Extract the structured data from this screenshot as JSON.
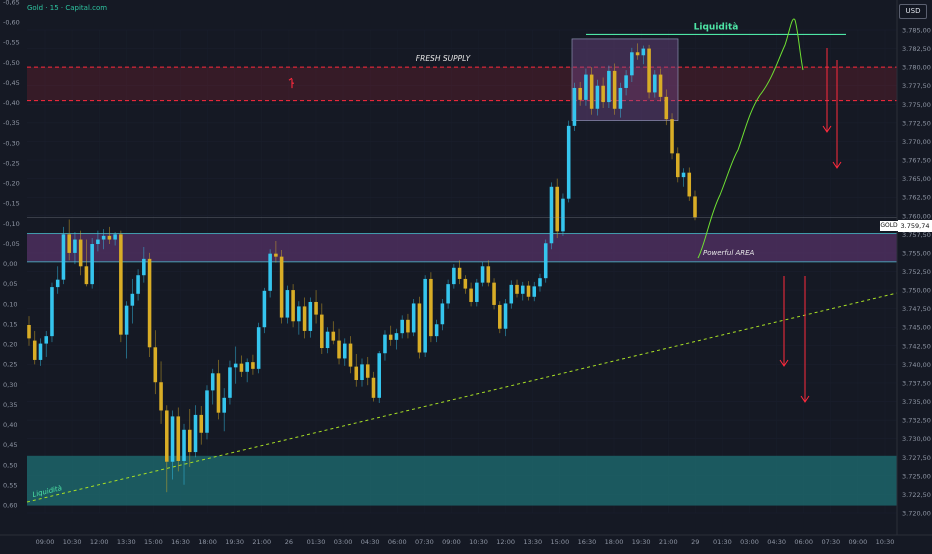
{
  "header": {
    "title": "Gold · 15 · Capital.com",
    "currency": "USD"
  },
  "price_tag": {
    "symbol": "GOLD",
    "value": "3.759,74"
  },
  "colors": {
    "background": "#151924",
    "bull": "#35c5ee",
    "bear": "#d9ad26",
    "supply": "#ff2a3d",
    "zone": "#6c3a7d",
    "liquidity_line": "#4ee6a6",
    "projection": "#6fe033",
    "trendline": "#a8e024",
    "demand_zone": "#1d6f73",
    "axis_text": "#8e95a3"
  },
  "chart_data": {
    "type": "candlestick",
    "title": "Gold · 15 · Capital.com",
    "currency": "USD",
    "right_axis_ticks": [
      "3.785,00",
      "3.782,50",
      "3.780,00",
      "3.777,50",
      "3.775,00",
      "3.772,50",
      "3.770,00",
      "3.767,50",
      "3.765,00",
      "3.762,50",
      "3.760,00",
      "3.757,50",
      "3.755,00",
      "3.752,50",
      "3.750,00",
      "3.747,50",
      "3.745,00",
      "3.742,50",
      "3.740,00",
      "3.737,50",
      "3.735,00",
      "3.732,50",
      "3.730,00",
      "3.727,50",
      "3.725,00",
      "3.722,50",
      "3.720,00"
    ],
    "left_axis_ticks": [
      "-0,65",
      "-0,60",
      "-0,55",
      "-0,50",
      "-0,45",
      "-0,40",
      "-0,35",
      "-0,30",
      "-0,25",
      "-0,20",
      "-0,15",
      "-0,10",
      "-0,05",
      "0,00",
      "0,05",
      "0,10",
      "0,15",
      "0,20",
      "0,25",
      "0,30",
      "0,35",
      "0,40",
      "0,45",
      "0,50",
      "0,55",
      "0,60"
    ],
    "x_ticks": [
      "09:00",
      "10:30",
      "12:00",
      "13:30",
      "15:00",
      "16:30",
      "18:00",
      "19:30",
      "21:00",
      "26",
      "01:30",
      "03:00",
      "04:30",
      "06:00",
      "07:30",
      "09:00",
      "10:30",
      "12:00",
      "13:30",
      "15:00",
      "16:30",
      "18:00",
      "19:30",
      "21:00",
      "29",
      "01:30",
      "03:00",
      "04:30",
      "06:00",
      "07:30",
      "09:00",
      "10:30"
    ],
    "y_range": [
      3719.5,
      3787.5
    ],
    "last_price": 3759.74,
    "annotations": {
      "fresh_supply_label": "FRESH SUPPLY",
      "liquidity_top_label": "Liquidità",
      "powerful_area_label": "Powerful AREA",
      "liquidity_bottom_label": "Liquidità",
      "supply_zone": [
        3775.5,
        3780.0
      ],
      "liquidity_level": 3784.4,
      "powerful_area": [
        3753.8,
        3757.6
      ],
      "liquidity_zone": [
        3721.0,
        3727.7
      ]
    },
    "candles": [
      {
        "o": 3745.3,
        "h": 3746.5,
        "l": 3742.5,
        "c": 3743.5
      },
      {
        "o": 3743.2,
        "h": 3744.5,
        "l": 3740.0,
        "c": 3740.6
      },
      {
        "o": 3740.6,
        "h": 3743.5,
        "l": 3739.8,
        "c": 3742.8
      },
      {
        "o": 3742.8,
        "h": 3744.5,
        "l": 3741.0,
        "c": 3743.8
      },
      {
        "o": 3743.8,
        "h": 3751.0,
        "l": 3743.0,
        "c": 3750.4
      },
      {
        "o": 3750.4,
        "h": 3753.2,
        "l": 3749.5,
        "c": 3751.4
      },
      {
        "o": 3751.4,
        "h": 3758.5,
        "l": 3750.8,
        "c": 3757.5
      },
      {
        "o": 3757.5,
        "h": 3759.5,
        "l": 3754.0,
        "c": 3755.0
      },
      {
        "o": 3755.0,
        "h": 3757.8,
        "l": 3753.5,
        "c": 3756.8
      },
      {
        "o": 3756.8,
        "h": 3758.0,
        "l": 3752.0,
        "c": 3753.2
      },
      {
        "o": 3753.2,
        "h": 3756.8,
        "l": 3750.5,
        "c": 3750.8
      },
      {
        "o": 3750.8,
        "h": 3757.0,
        "l": 3750.2,
        "c": 3756.2
      },
      {
        "o": 3756.2,
        "h": 3758.0,
        "l": 3755.2,
        "c": 3756.8
      },
      {
        "o": 3756.8,
        "h": 3758.2,
        "l": 3755.5,
        "c": 3757.3
      },
      {
        "o": 3757.3,
        "h": 3758.5,
        "l": 3756.2,
        "c": 3756.8
      },
      {
        "o": 3756.8,
        "h": 3757.8,
        "l": 3756.0,
        "c": 3757.5
      },
      {
        "o": 3757.5,
        "h": 3758.0,
        "l": 3743.0,
        "c": 3744.0
      },
      {
        "o": 3744.0,
        "h": 3748.5,
        "l": 3740.8,
        "c": 3747.9
      },
      {
        "o": 3747.9,
        "h": 3751.5,
        "l": 3745.5,
        "c": 3749.5
      },
      {
        "o": 3749.5,
        "h": 3752.8,
        "l": 3748.6,
        "c": 3752.0
      },
      {
        "o": 3752.0,
        "h": 3755.8,
        "l": 3751.0,
        "c": 3754.2
      },
      {
        "o": 3754.2,
        "h": 3755.0,
        "l": 3741.0,
        "c": 3742.3
      },
      {
        "o": 3742.3,
        "h": 3744.6,
        "l": 3736.0,
        "c": 3737.6
      },
      {
        "o": 3737.6,
        "h": 3740.4,
        "l": 3732.0,
        "c": 3733.8
      },
      {
        "o": 3733.8,
        "h": 3734.5,
        "l": 3722.8,
        "c": 3726.9
      },
      {
        "o": 3726.9,
        "h": 3733.8,
        "l": 3724.5,
        "c": 3733.0
      },
      {
        "o": 3733.0,
        "h": 3734.2,
        "l": 3725.6,
        "c": 3727.0
      },
      {
        "o": 3727.0,
        "h": 3732.0,
        "l": 3723.8,
        "c": 3731.2
      },
      {
        "o": 3731.2,
        "h": 3734.0,
        "l": 3726.2,
        "c": 3728.2
      },
      {
        "o": 3728.2,
        "h": 3734.5,
        "l": 3727.5,
        "c": 3733.2
      },
      {
        "o": 3733.2,
        "h": 3734.4,
        "l": 3729.2,
        "c": 3730.8
      },
      {
        "o": 3730.8,
        "h": 3737.2,
        "l": 3729.9,
        "c": 3736.5
      },
      {
        "o": 3736.5,
        "h": 3739.4,
        "l": 3734.6,
        "c": 3738.8
      },
      {
        "o": 3738.8,
        "h": 3740.6,
        "l": 3732.6,
        "c": 3733.5
      },
      {
        "o": 3733.5,
        "h": 3736.8,
        "l": 3731.0,
        "c": 3735.5
      },
      {
        "o": 3735.5,
        "h": 3740.5,
        "l": 3734.6,
        "c": 3739.6
      },
      {
        "o": 3739.6,
        "h": 3742.4,
        "l": 3737.4,
        "c": 3740.1
      },
      {
        "o": 3740.1,
        "h": 3741.2,
        "l": 3738.3,
        "c": 3739.0
      },
      {
        "o": 3739.0,
        "h": 3740.8,
        "l": 3737.6,
        "c": 3740.3
      },
      {
        "o": 3740.3,
        "h": 3741.3,
        "l": 3738.6,
        "c": 3739.4
      },
      {
        "o": 3739.4,
        "h": 3745.6,
        "l": 3738.8,
        "c": 3745.0
      },
      {
        "o": 3745.0,
        "h": 3750.3,
        "l": 3744.2,
        "c": 3749.9
      },
      {
        "o": 3749.9,
        "h": 3755.5,
        "l": 3749.0,
        "c": 3754.9
      },
      {
        "o": 3754.9,
        "h": 3756.6,
        "l": 3753.7,
        "c": 3754.5
      },
      {
        "o": 3754.5,
        "h": 3755.4,
        "l": 3745.5,
        "c": 3746.3
      },
      {
        "o": 3746.3,
        "h": 3750.6,
        "l": 3745.5,
        "c": 3750.0
      },
      {
        "o": 3750.0,
        "h": 3750.8,
        "l": 3745.0,
        "c": 3745.8
      },
      {
        "o": 3745.8,
        "h": 3748.5,
        "l": 3744.0,
        "c": 3747.8
      },
      {
        "o": 3747.8,
        "h": 3749.0,
        "l": 3743.5,
        "c": 3744.5
      },
      {
        "o": 3744.5,
        "h": 3749.0,
        "l": 3743.6,
        "c": 3748.4
      },
      {
        "o": 3748.4,
        "h": 3750.0,
        "l": 3745.5,
        "c": 3746.7
      },
      {
        "o": 3746.7,
        "h": 3748.2,
        "l": 3741.4,
        "c": 3742.2
      },
      {
        "o": 3742.2,
        "h": 3745.0,
        "l": 3741.5,
        "c": 3744.4
      },
      {
        "o": 3744.4,
        "h": 3745.8,
        "l": 3742.7,
        "c": 3743.2
      },
      {
        "o": 3743.2,
        "h": 3744.8,
        "l": 3740.0,
        "c": 3740.8
      },
      {
        "o": 3740.8,
        "h": 3743.5,
        "l": 3739.8,
        "c": 3742.8
      },
      {
        "o": 3742.8,
        "h": 3743.8,
        "l": 3738.8,
        "c": 3739.7
      },
      {
        "o": 3739.7,
        "h": 3741.4,
        "l": 3737.0,
        "c": 3737.9
      },
      {
        "o": 3737.9,
        "h": 3740.8,
        "l": 3737.0,
        "c": 3740.0
      },
      {
        "o": 3740.0,
        "h": 3741.0,
        "l": 3737.2,
        "c": 3738.2
      },
      {
        "o": 3738.2,
        "h": 3739.0,
        "l": 3735.0,
        "c": 3735.5
      },
      {
        "o": 3735.5,
        "h": 3741.8,
        "l": 3734.8,
        "c": 3741.5
      },
      {
        "o": 3741.5,
        "h": 3744.6,
        "l": 3740.5,
        "c": 3744.0
      },
      {
        "o": 3744.0,
        "h": 3745.2,
        "l": 3742.5,
        "c": 3743.3
      },
      {
        "o": 3743.3,
        "h": 3744.8,
        "l": 3742.0,
        "c": 3744.2
      },
      {
        "o": 3744.2,
        "h": 3746.6,
        "l": 3743.5,
        "c": 3746.0
      },
      {
        "o": 3746.0,
        "h": 3746.8,
        "l": 3743.5,
        "c": 3744.3
      },
      {
        "o": 3744.3,
        "h": 3748.8,
        "l": 3743.8,
        "c": 3748.2
      },
      {
        "o": 3748.2,
        "h": 3749.1,
        "l": 3740.8,
        "c": 3741.6
      },
      {
        "o": 3741.6,
        "h": 3752.0,
        "l": 3741.0,
        "c": 3751.5
      },
      {
        "o": 3751.5,
        "h": 3752.4,
        "l": 3743.0,
        "c": 3743.8
      },
      {
        "o": 3743.8,
        "h": 3746.0,
        "l": 3743.0,
        "c": 3745.4
      },
      {
        "o": 3745.4,
        "h": 3748.8,
        "l": 3744.6,
        "c": 3748.2
      },
      {
        "o": 3748.2,
        "h": 3751.4,
        "l": 3747.5,
        "c": 3750.8
      },
      {
        "o": 3750.8,
        "h": 3753.5,
        "l": 3750.2,
        "c": 3753.0
      },
      {
        "o": 3753.0,
        "h": 3754.0,
        "l": 3750.8,
        "c": 3751.5
      },
      {
        "o": 3751.5,
        "h": 3752.0,
        "l": 3749.5,
        "c": 3750.2
      },
      {
        "o": 3750.2,
        "h": 3751.0,
        "l": 3747.8,
        "c": 3748.4
      },
      {
        "o": 3748.4,
        "h": 3751.5,
        "l": 3747.8,
        "c": 3751.0
      },
      {
        "o": 3751.0,
        "h": 3753.8,
        "l": 3750.5,
        "c": 3753.2
      },
      {
        "o": 3753.2,
        "h": 3754.0,
        "l": 3750.5,
        "c": 3751.0
      },
      {
        "o": 3751.0,
        "h": 3751.6,
        "l": 3747.4,
        "c": 3748.0
      },
      {
        "o": 3748.0,
        "h": 3748.5,
        "l": 3744.2,
        "c": 3744.8
      },
      {
        "o": 3744.8,
        "h": 3748.8,
        "l": 3743.8,
        "c": 3748.2
      },
      {
        "o": 3748.2,
        "h": 3751.3,
        "l": 3747.5,
        "c": 3750.7
      },
      {
        "o": 3750.7,
        "h": 3751.4,
        "l": 3749.0,
        "c": 3749.5
      },
      {
        "o": 3749.5,
        "h": 3751.1,
        "l": 3748.6,
        "c": 3750.6
      },
      {
        "o": 3750.6,
        "h": 3751.2,
        "l": 3748.6,
        "c": 3749.1
      },
      {
        "o": 3749.1,
        "h": 3751.1,
        "l": 3748.5,
        "c": 3750.5
      },
      {
        "o": 3750.5,
        "h": 3752.2,
        "l": 3749.8,
        "c": 3751.6
      },
      {
        "o": 3751.6,
        "h": 3756.8,
        "l": 3751.0,
        "c": 3756.3
      },
      {
        "o": 3756.3,
        "h": 3764.5,
        "l": 3755.5,
        "c": 3763.9
      },
      {
        "o": 3763.9,
        "h": 3765.0,
        "l": 3757.0,
        "c": 3757.9
      },
      {
        "o": 3757.9,
        "h": 3763.0,
        "l": 3757.3,
        "c": 3762.3
      },
      {
        "o": 3762.3,
        "h": 3772.8,
        "l": 3761.8,
        "c": 3772.1
      },
      {
        "o": 3772.1,
        "h": 3777.9,
        "l": 3771.4,
        "c": 3777.2
      },
      {
        "o": 3777.2,
        "h": 3778.0,
        "l": 3774.8,
        "c": 3775.6
      },
      {
        "o": 3775.6,
        "h": 3779.8,
        "l": 3774.8,
        "c": 3779.0
      },
      {
        "o": 3779.0,
        "h": 3780.0,
        "l": 3773.6,
        "c": 3774.4
      },
      {
        "o": 3774.4,
        "h": 3778.3,
        "l": 3773.5,
        "c": 3777.5
      },
      {
        "o": 3777.5,
        "h": 3778.6,
        "l": 3774.5,
        "c": 3775.3
      },
      {
        "o": 3775.3,
        "h": 3780.2,
        "l": 3774.5,
        "c": 3779.5
      },
      {
        "o": 3779.5,
        "h": 3780.5,
        "l": 3773.6,
        "c": 3774.4
      },
      {
        "o": 3774.4,
        "h": 3777.9,
        "l": 3773.2,
        "c": 3777.2
      },
      {
        "o": 3777.2,
        "h": 3779.6,
        "l": 3776.2,
        "c": 3778.9
      },
      {
        "o": 3778.9,
        "h": 3782.6,
        "l": 3778.0,
        "c": 3782.0
      },
      {
        "o": 3782.0,
        "h": 3783.2,
        "l": 3781.0,
        "c": 3781.6
      },
      {
        "o": 3781.6,
        "h": 3782.9,
        "l": 3780.4,
        "c": 3782.5
      },
      {
        "o": 3782.5,
        "h": 3783.0,
        "l": 3775.8,
        "c": 3776.6
      },
      {
        "o": 3776.6,
        "h": 3779.6,
        "l": 3775.9,
        "c": 3779.0
      },
      {
        "o": 3779.0,
        "h": 3779.8,
        "l": 3775.4,
        "c": 3776.0
      },
      {
        "o": 3776.0,
        "h": 3777.0,
        "l": 3772.2,
        "c": 3773.0
      },
      {
        "o": 3773.0,
        "h": 3773.8,
        "l": 3767.6,
        "c": 3768.4
      },
      {
        "o": 3768.4,
        "h": 3769.2,
        "l": 3764.5,
        "c": 3765.2
      },
      {
        "o": 3765.2,
        "h": 3766.4,
        "l": 3763.9,
        "c": 3765.8
      },
      {
        "o": 3765.8,
        "h": 3766.5,
        "l": 3762.0,
        "c": 3762.6
      },
      {
        "o": 3762.6,
        "h": 3763.4,
        "l": 3759.4,
        "c": 3759.8
      }
    ]
  }
}
